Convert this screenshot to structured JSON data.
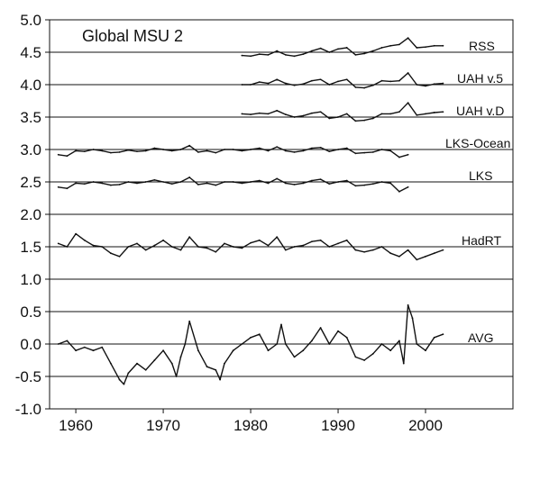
{
  "chart_data": {
    "type": "line",
    "title": "Global MSU 2",
    "xlabel": "",
    "ylabel": "",
    "xlim": [
      1957,
      2010
    ],
    "ylim": [
      -1.0,
      5.0
    ],
    "xticks": [
      1960,
      1970,
      1980,
      1990,
      2000
    ],
    "yticks": [
      -1.0,
      -0.5,
      0.0,
      0.5,
      1.0,
      1.5,
      2.0,
      2.5,
      3.0,
      3.5,
      4.0,
      4.5,
      5.0
    ],
    "ytick_labels": [
      "-1.0",
      "-0.5",
      "0.0",
      "0.5",
      "1.0",
      "1.5",
      "2.0",
      "2.5",
      "3.0",
      "3.5",
      "4.0",
      "4.5",
      "5.0"
    ],
    "grid": "horizontal",
    "series": [
      {
        "name": "RSS",
        "offset": 4.5,
        "x": [
          1979.0,
          1980.0,
          1981.0,
          1982.0,
          1983.0,
          1984.0,
          1985.0,
          1986.0,
          1987.0,
          1988.0,
          1989.0,
          1990.0,
          1991.0,
          1992.0,
          1993.0,
          1994.0,
          1995.0,
          1996.0,
          1997.0,
          1998.0,
          1999.0,
          2000.0,
          2001.0,
          2002.0
        ],
        "values": [
          4.45,
          4.44,
          4.47,
          4.46,
          4.52,
          4.46,
          4.44,
          4.47,
          4.52,
          4.56,
          4.5,
          4.55,
          4.57,
          4.46,
          4.48,
          4.52,
          4.57,
          4.6,
          4.62,
          4.72,
          4.57,
          4.58,
          4.6,
          4.6
        ]
      },
      {
        "name": "UAH v.5",
        "offset": 4.0,
        "x": [
          1979.0,
          1980.0,
          1981.0,
          1982.0,
          1983.0,
          1984.0,
          1985.0,
          1986.0,
          1987.0,
          1988.0,
          1989.0,
          1990.0,
          1991.0,
          1992.0,
          1993.0,
          1994.0,
          1995.0,
          1996.0,
          1997.0,
          1998.0,
          1999.0,
          2000.0,
          2001.0,
          2002.0
        ],
        "values": [
          4.0,
          4.0,
          4.04,
          4.02,
          4.08,
          4.02,
          3.99,
          4.01,
          4.06,
          4.08,
          4.0,
          4.05,
          4.08,
          3.96,
          3.95,
          3.99,
          4.06,
          4.05,
          4.06,
          4.18,
          4.0,
          3.98,
          4.01,
          4.02
        ]
      },
      {
        "name": "UAH v.D",
        "offset": 3.5,
        "x": [
          1979.0,
          1980.0,
          1981.0,
          1982.0,
          1983.0,
          1984.0,
          1985.0,
          1986.0,
          1987.0,
          1988.0,
          1989.0,
          1990.0,
          1991.0,
          1992.0,
          1993.0,
          1994.0,
          1995.0,
          1996.0,
          1997.0,
          1998.0,
          1999.0,
          2000.0,
          2001.0,
          2002.0
        ],
        "values": [
          3.55,
          3.54,
          3.56,
          3.55,
          3.6,
          3.54,
          3.5,
          3.52,
          3.56,
          3.58,
          3.48,
          3.5,
          3.55,
          3.44,
          3.45,
          3.48,
          3.55,
          3.55,
          3.58,
          3.72,
          3.53,
          3.55,
          3.57,
          3.58
        ]
      },
      {
        "name": "LKS-Ocean",
        "offset": 3.0,
        "x": [
          1958.0,
          1959.0,
          1960.0,
          1961.0,
          1962.0,
          1963.0,
          1964.0,
          1965.0,
          1966.0,
          1967.0,
          1968.0,
          1969.0,
          1970.0,
          1971.0,
          1972.0,
          1973.0,
          1974.0,
          1975.0,
          1976.0,
          1977.0,
          1978.0,
          1979.0,
          1980.0,
          1981.0,
          1982.0,
          1983.0,
          1984.0,
          1985.0,
          1986.0,
          1987.0,
          1988.0,
          1989.0,
          1990.0,
          1991.0,
          1992.0,
          1993.0,
          1994.0,
          1995.0,
          1996.0,
          1997.0,
          1998.0
        ],
        "values": [
          2.92,
          2.9,
          2.98,
          2.97,
          3.0,
          2.98,
          2.95,
          2.96,
          2.99,
          2.97,
          2.98,
          3.02,
          3.0,
          2.98,
          3.0,
          3.06,
          2.96,
          2.98,
          2.95,
          3.0,
          3.0,
          2.98,
          3.0,
          3.02,
          2.98,
          3.04,
          2.98,
          2.96,
          2.98,
          3.02,
          3.03,
          2.97,
          3.0,
          3.02,
          2.94,
          2.95,
          2.96,
          3.0,
          2.98,
          2.88,
          2.92
        ]
      },
      {
        "name": "LKS",
        "offset": 2.5,
        "x": [
          1958.0,
          1959.0,
          1960.0,
          1961.0,
          1962.0,
          1963.0,
          1964.0,
          1965.0,
          1966.0,
          1967.0,
          1968.0,
          1969.0,
          1970.0,
          1971.0,
          1972.0,
          1973.0,
          1974.0,
          1975.0,
          1976.0,
          1977.0,
          1978.0,
          1979.0,
          1980.0,
          1981.0,
          1982.0,
          1983.0,
          1984.0,
          1985.0,
          1986.0,
          1987.0,
          1988.0,
          1989.0,
          1990.0,
          1991.0,
          1992.0,
          1993.0,
          1994.0,
          1995.0,
          1996.0,
          1997.0,
          1998.0
        ],
        "values": [
          2.42,
          2.4,
          2.48,
          2.47,
          2.5,
          2.48,
          2.45,
          2.46,
          2.5,
          2.48,
          2.5,
          2.53,
          2.5,
          2.47,
          2.5,
          2.57,
          2.46,
          2.48,
          2.45,
          2.5,
          2.5,
          2.48,
          2.5,
          2.52,
          2.48,
          2.55,
          2.48,
          2.46,
          2.48,
          2.52,
          2.54,
          2.47,
          2.5,
          2.52,
          2.44,
          2.45,
          2.47,
          2.5,
          2.48,
          2.35,
          2.42
        ]
      },
      {
        "name": "HadRT",
        "offset": 1.5,
        "x": [
          1958.0,
          1959.0,
          1960.0,
          1961.0,
          1962.0,
          1963.0,
          1964.0,
          1965.0,
          1966.0,
          1967.0,
          1968.0,
          1969.0,
          1970.0,
          1971.0,
          1972.0,
          1973.0,
          1974.0,
          1975.0,
          1976.0,
          1977.0,
          1978.0,
          1979.0,
          1980.0,
          1981.0,
          1982.0,
          1983.0,
          1984.0,
          1985.0,
          1986.0,
          1987.0,
          1988.0,
          1989.0,
          1990.0,
          1991.0,
          1992.0,
          1993.0,
          1994.0,
          1995.0,
          1996.0,
          1997.0,
          1998.0,
          1999.0,
          2000.0,
          2001.0,
          2002.0
        ],
        "values": [
          1.55,
          1.5,
          1.7,
          1.6,
          1.52,
          1.5,
          1.4,
          1.35,
          1.5,
          1.55,
          1.45,
          1.52,
          1.6,
          1.5,
          1.45,
          1.65,
          1.5,
          1.48,
          1.42,
          1.55,
          1.5,
          1.48,
          1.56,
          1.6,
          1.52,
          1.65,
          1.45,
          1.5,
          1.52,
          1.58,
          1.6,
          1.5,
          1.55,
          1.6,
          1.45,
          1.42,
          1.45,
          1.5,
          1.4,
          1.35,
          1.45,
          1.3,
          1.35,
          1.4,
          1.45
        ]
      },
      {
        "name": "AVG",
        "offset": 0.0,
        "x": [
          1958.0,
          1959.0,
          1960.0,
          1961.0,
          1962.0,
          1963.0,
          1964.0,
          1965.0,
          1965.5,
          1966.0,
          1967.0,
          1968.0,
          1969.0,
          1970.0,
          1971.0,
          1971.5,
          1972.0,
          1972.5,
          1973.0,
          1974.0,
          1975.0,
          1976.0,
          1976.5,
          1977.0,
          1978.0,
          1979.0,
          1980.0,
          1981.0,
          1982.0,
          1983.0,
          1983.5,
          1984.0,
          1985.0,
          1986.0,
          1987.0,
          1988.0,
          1989.0,
          1990.0,
          1991.0,
          1992.0,
          1993.0,
          1994.0,
          1995.0,
          1996.0,
          1997.0,
          1997.5,
          1998.0,
          1998.5,
          1999.0,
          2000.0,
          2001.0,
          2002.0
        ],
        "values": [
          0.0,
          0.05,
          -0.1,
          -0.05,
          -0.1,
          -0.05,
          -0.3,
          -0.55,
          -0.62,
          -0.45,
          -0.3,
          -0.4,
          -0.25,
          -0.1,
          -0.3,
          -0.5,
          -0.2,
          0.0,
          0.35,
          -0.1,
          -0.35,
          -0.4,
          -0.55,
          -0.3,
          -0.1,
          0.0,
          0.1,
          0.15,
          -0.1,
          0.0,
          0.3,
          0.0,
          -0.2,
          -0.1,
          0.05,
          0.25,
          0.0,
          0.2,
          0.1,
          -0.2,
          -0.25,
          -0.15,
          0.0,
          -0.1,
          0.05,
          -0.3,
          0.6,
          0.4,
          0.0,
          -0.1,
          0.1,
          0.15
        ]
      }
    ]
  }
}
